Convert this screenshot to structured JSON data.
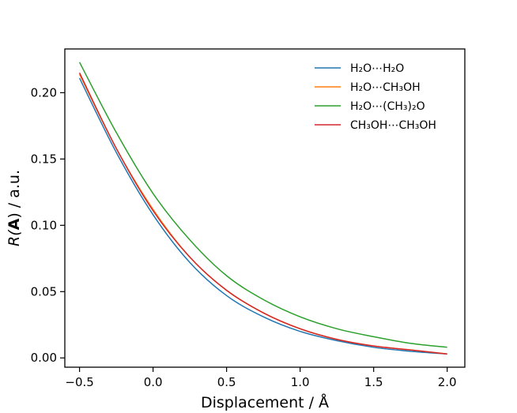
{
  "chart_data": {
    "type": "line",
    "xlabel": "Displacement / Å",
    "ylabel_pre": "R(",
    "ylabel_bold": "A",
    "ylabel_post": ") / a.u.",
    "xlim": [
      -0.6,
      2.12
    ],
    "ylim": [
      -0.007,
      0.233
    ],
    "xticks": [
      -0.5,
      0.0,
      0.5,
      1.0,
      1.5,
      2.0
    ],
    "xtick_labels": [
      "−0.5",
      "0.0",
      "0.5",
      "1.0",
      "1.5",
      "2.0"
    ],
    "yticks": [
      0.0,
      0.05,
      0.1,
      0.15,
      0.2
    ],
    "ytick_labels": [
      "0.00",
      "0.05",
      "0.10",
      "0.15",
      "0.20"
    ],
    "grid": false,
    "legend_position": "top-right",
    "x": [
      -0.5,
      -0.25,
      0.0,
      0.25,
      0.5,
      0.75,
      1.0,
      1.25,
      1.5,
      1.75,
      2.0
    ],
    "series": [
      {
        "name": "H₂O⋯H₂O",
        "color": "#1f77b4",
        "values": [
          0.211,
          0.155,
          0.108,
          0.072,
          0.047,
          0.031,
          0.02,
          0.013,
          0.008,
          0.005,
          0.003
        ]
      },
      {
        "name": "H₂O⋯CH₃OH",
        "color": "#ff7f0e",
        "values": [
          0.214,
          0.158,
          0.112,
          0.076,
          0.051,
          0.034,
          0.022,
          0.014,
          0.009,
          0.006,
          0.003
        ]
      },
      {
        "name": "H₂O⋯(CH₃)₂O",
        "color": "#2ca02c",
        "values": [
          0.223,
          0.17,
          0.124,
          0.089,
          0.062,
          0.044,
          0.031,
          0.022,
          0.016,
          0.011,
          0.008
        ]
      },
      {
        "name": "CH₃OH⋯CH₃OH",
        "color": "#d62728",
        "values": [
          0.215,
          0.158,
          0.111,
          0.076,
          0.051,
          0.034,
          0.022,
          0.014,
          0.009,
          0.006,
          0.003
        ]
      }
    ]
  }
}
